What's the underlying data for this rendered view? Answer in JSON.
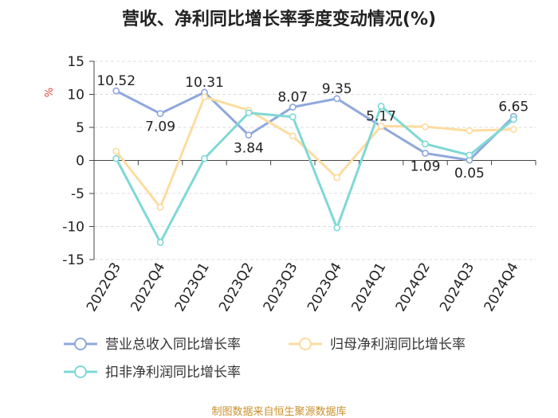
{
  "chart_data": {
    "type": "line",
    "title": "营收、净利同比增长率季度变动情况(%)",
    "ylabel": "%",
    "ylim": [
      -15,
      15
    ],
    "yticks": [
      15,
      10,
      5,
      0,
      -5,
      -10,
      -15
    ],
    "grid": true,
    "legend_position": "bottom",
    "categories": [
      "2022Q3",
      "2022Q4",
      "2023Q1",
      "2023Q2",
      "2023Q3",
      "2023Q4",
      "2024Q1",
      "2024Q2",
      "2024Q3",
      "2024Q4"
    ],
    "series": [
      {
        "name": "营业总收入同比增长率",
        "color": "#8fa8dc",
        "values": [
          10.52,
          7.09,
          10.31,
          3.84,
          8.07,
          9.35,
          5.17,
          1.09,
          0.05,
          6.65
        ],
        "labels": [
          "10.52",
          "7.09",
          "10.31",
          "3.84",
          "8.07",
          "9.35",
          "5.17",
          "1.09",
          "0.05",
          "6.65"
        ]
      },
      {
        "name": "归母净利润同比增长率",
        "color": "#fcdca0",
        "values": [
          1.4,
          -7.1,
          9.6,
          7.6,
          3.7,
          -2.6,
          5.2,
          5.1,
          4.5,
          4.7
        ]
      },
      {
        "name": "扣非净利润同比增长率",
        "color": "#7fd8d6",
        "values": [
          0.3,
          -12.4,
          0.3,
          7.2,
          6.6,
          -10.2,
          8.2,
          2.5,
          0.8,
          6.2
        ]
      }
    ]
  },
  "source": "制图数据来自恒生聚源数据库"
}
